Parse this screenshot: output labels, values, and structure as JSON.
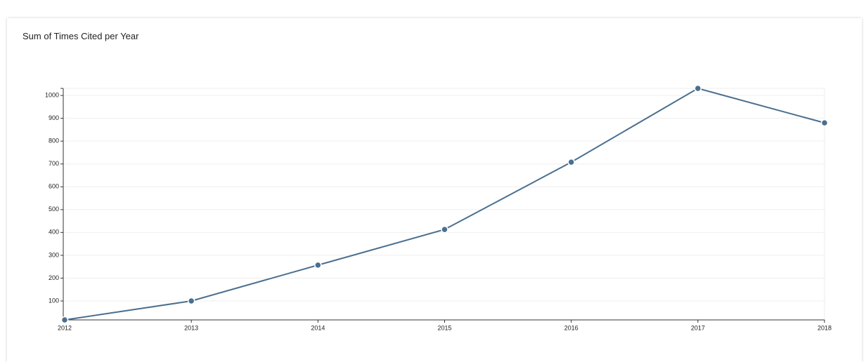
{
  "chart_data": {
    "type": "line",
    "title": "Sum of Times Cited per Year",
    "x": [
      2012,
      2013,
      2014,
      2015,
      2016,
      2017,
      2018
    ],
    "series": [
      {
        "name": "Times Cited",
        "color": "#4a6f8f",
        "values": [
          17,
          100,
          257,
          413,
          708,
          1031,
          880
        ]
      }
    ],
    "xlim": [
      2012,
      2018
    ],
    "xticks": [
      2012,
      2013,
      2014,
      2015,
      2016,
      2017,
      2018
    ],
    "ylim": [
      17,
      1031
    ],
    "yticks": [
      100,
      200,
      300,
      400,
      500,
      600,
      700,
      800,
      900,
      1000
    ],
    "grid": true
  }
}
